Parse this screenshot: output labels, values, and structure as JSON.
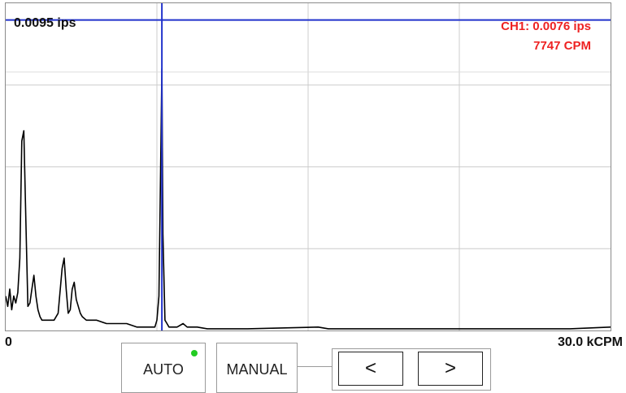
{
  "plot": {
    "y_max_label": "0.0095 ips",
    "x_min_label": "0",
    "x_max_label": "30.0 kCPM"
  },
  "readout": {
    "amplitude": "CH1: 0.0076 ips",
    "frequency": "7747 CPM"
  },
  "controls": {
    "auto_label": "AUTO",
    "auto_active": true,
    "manual_label": "MANUAL",
    "prev_label": "<",
    "next_label": ">"
  },
  "colors": {
    "cursor": "#2233cc",
    "readout": "#ee2222",
    "spectrum": "#000000",
    "grid": "#cccccc",
    "auto_indicator": "#22cc22"
  },
  "chart_data": {
    "type": "line",
    "xlabel": "",
    "ylabel": "",
    "xlim": [
      0,
      30000
    ],
    "ylim": [
      0,
      0.0095
    ],
    "x_unit": "CPM",
    "y_unit": "ips",
    "grid": true,
    "cursor": {
      "x": 7747,
      "y": 0.0076
    },
    "series": [
      {
        "x": [
          0,
          100,
          200,
          300,
          400,
          500,
          600,
          700,
          800,
          900,
          1000,
          1100,
          1200,
          1300,
          1400,
          1500,
          1600,
          1700,
          1800,
          1900,
          2000,
          2200,
          2400,
          2600,
          2800,
          2900,
          3000,
          3100,
          3200,
          3300,
          3400,
          3500,
          3600,
          3700,
          3800,
          4000,
          4500,
          5000,
          5500,
          6000,
          6500,
          7000,
          7400,
          7500,
          7600,
          7700,
          7747,
          7800,
          7900,
          8000,
          8100,
          8500,
          8800,
          9000,
          9500,
          10000,
          12000,
          15500,
          16000,
          18000,
          20000,
          22000,
          25000,
          28000,
          30000
        ],
        "y": [
          0.001,
          0.0007,
          0.0012,
          0.0006,
          0.001,
          0.0008,
          0.0011,
          0.0021,
          0.0055,
          0.0058,
          0.0032,
          0.0007,
          0.0008,
          0.0012,
          0.0016,
          0.001,
          0.0006,
          0.0004,
          0.0003,
          0.0003,
          0.0003,
          0.0003,
          0.0003,
          0.0005,
          0.0018,
          0.0021,
          0.0012,
          0.0005,
          0.0006,
          0.0012,
          0.0014,
          0.0009,
          0.0007,
          0.0005,
          0.0004,
          0.0003,
          0.0003,
          0.0002,
          0.0002,
          0.0002,
          0.0001,
          0.0001,
          0.0001,
          0.0003,
          0.001,
          0.0055,
          0.0076,
          0.0028,
          0.0003,
          0.0002,
          0.0001,
          0.0001,
          0.0002,
          0.0001,
          0.0001,
          5e-05,
          5e-05,
          0.0001,
          5e-05,
          5e-05,
          5e-05,
          5e-05,
          5e-05,
          5e-05,
          0.0001
        ]
      }
    ]
  }
}
